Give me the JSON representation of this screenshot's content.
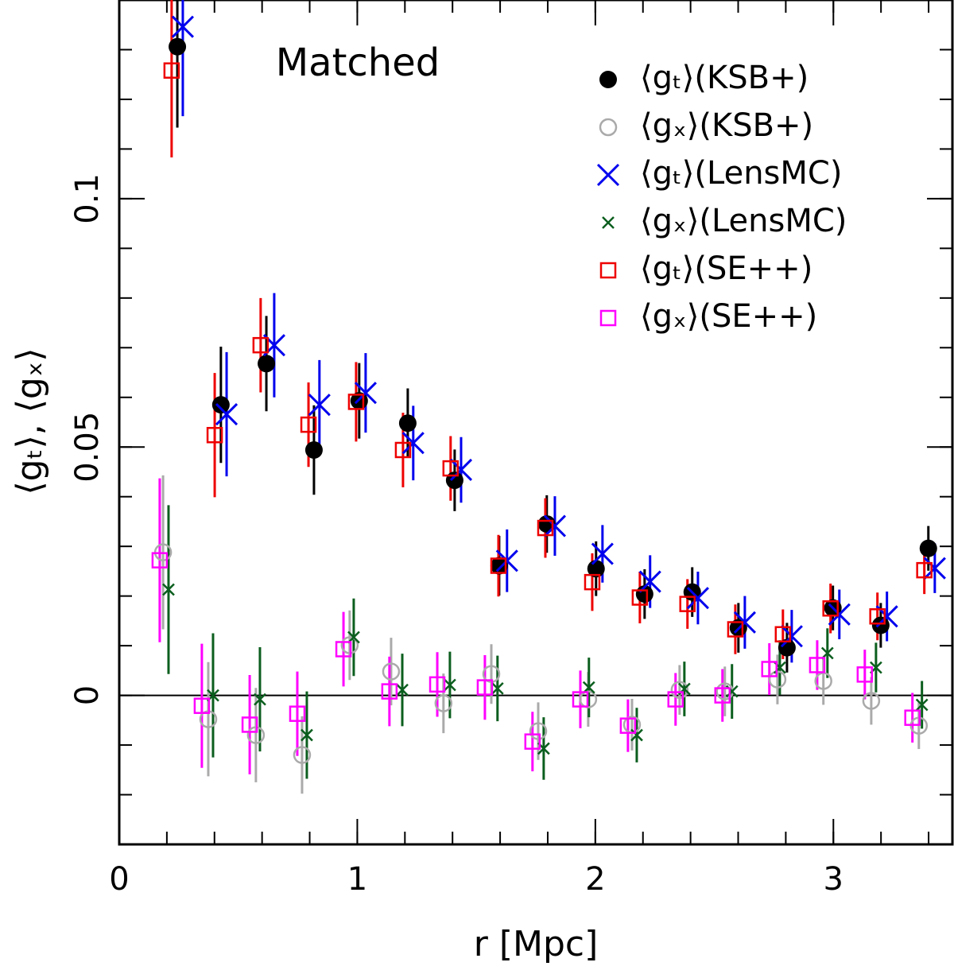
{
  "chart_data": {
    "type": "scatter",
    "annotation": "Matched",
    "x_label": "r [Mpc]",
    "y_label": "⟨gₜ⟩, ⟨gₓ⟩",
    "xlim": [
      0,
      3.5
    ],
    "ylim": [
      -0.03,
      0.14
    ],
    "xticks": [
      0,
      1,
      2,
      3
    ],
    "yticks": [
      0,
      0.05,
      0.1
    ],
    "legend": "upper right",
    "series": [
      {
        "name": "⟨gₜ⟩(KSB+)",
        "color": "#000000",
        "marker": "filled-circle",
        "x": [
          0.244,
          0.427,
          0.618,
          0.818,
          1.008,
          1.212,
          1.409,
          1.596,
          1.796,
          2.003,
          2.207,
          2.407,
          2.601,
          2.805,
          2.998,
          3.199,
          3.399
        ],
        "values": [
          0.1306,
          0.0585,
          0.0668,
          0.0494,
          0.0593,
          0.0548,
          0.0433,
          0.0261,
          0.0345,
          0.0255,
          0.0204,
          0.0208,
          0.0136,
          0.0096,
          0.0176,
          0.0141,
          0.0296
        ],
        "errors": [
          0.0163,
          0.0117,
          0.0096,
          0.009,
          0.0076,
          0.007,
          0.0062,
          0.006,
          0.0058,
          0.0055,
          0.005,
          0.005,
          0.005,
          0.005,
          0.0045,
          0.0045,
          0.0045
        ]
      },
      {
        "name": "⟨gₓ⟩(KSB+)",
        "color": "#aaaaaa",
        "marker": "open-circle",
        "x": [
          0.184,
          0.374,
          0.574,
          0.768,
          0.968,
          1.142,
          1.362,
          1.563,
          1.76,
          1.97,
          2.154,
          2.354,
          2.544,
          2.765,
          2.958,
          3.159,
          3.359
        ],
        "values": [
          0.0288,
          -0.0048,
          -0.008,
          -0.012,
          0.0101,
          0.0048,
          -0.0016,
          0.0043,
          -0.0072,
          -0.0008,
          -0.0059,
          0.0011,
          0.0008,
          0.0032,
          0.0029,
          -0.0011,
          -0.0061
        ],
        "errors": [
          0.0155,
          0.0115,
          0.0095,
          0.0078,
          0.007,
          0.0068,
          0.006,
          0.006,
          0.0058,
          0.0055,
          0.0052,
          0.005,
          0.005,
          0.005,
          0.0048,
          0.0048,
          0.0047
        ]
      },
      {
        "name": "⟨gₜ⟩(LensMC)",
        "color": "#0000ee",
        "marker": "big-cross",
        "x": [
          0.267,
          0.451,
          0.651,
          0.841,
          1.035,
          1.235,
          1.436,
          1.629,
          1.83,
          2.03,
          2.23,
          2.431,
          2.628,
          2.825,
          3.025,
          3.225,
          3.426
        ],
        "values": [
          0.1346,
          0.0566,
          0.0705,
          0.0585,
          0.0609,
          0.0508,
          0.0454,
          0.0271,
          0.0341,
          0.0285,
          0.0229,
          0.0196,
          0.0147,
          0.0119,
          0.0163,
          0.0159,
          0.0256
        ],
        "errors": [
          0.018,
          0.0125,
          0.0105,
          0.009,
          0.008,
          0.0075,
          0.0066,
          0.0063,
          0.006,
          0.0058,
          0.0053,
          0.0053,
          0.0053,
          0.0053,
          0.005,
          0.005,
          0.005
        ]
      },
      {
        "name": "⟨gₓ⟩(LensMC)",
        "color": "#0b5e1e",
        "marker": "small-cross",
        "x": [
          0.207,
          0.394,
          0.591,
          0.788,
          0.985,
          1.189,
          1.389,
          1.589,
          1.783,
          1.973,
          2.174,
          2.374,
          2.574,
          2.775,
          2.975,
          3.179,
          3.372
        ],
        "values": [
          0.0213,
          0,
          -0.0008,
          -0.008,
          0.0117,
          0.0011,
          0.0021,
          0.0014,
          -0.0107,
          0.0016,
          -0.008,
          0.0013,
          0.0008,
          0.0056,
          0.0085,
          0.0056,
          -0.0019
        ],
        "errors": [
          0.017,
          0.0125,
          0.0105,
          0.0088,
          0.0078,
          0.0073,
          0.0067,
          0.0066,
          0.0063,
          0.006,
          0.0055,
          0.0055,
          0.0055,
          0.0055,
          0.005,
          0.005,
          0.0048
        ]
      },
      {
        "name": "⟨gₜ⟩(SE++)",
        "color": "#ee0000",
        "marker": "open-square",
        "x": [
          0.22,
          0.401,
          0.594,
          0.795,
          0.995,
          1.192,
          1.392,
          1.593,
          1.79,
          1.987,
          2.187,
          2.387,
          2.588,
          2.788,
          2.988,
          3.185,
          3.382
        ],
        "values": [
          0.1258,
          0.0524,
          0.0705,
          0.0545,
          0.0591,
          0.0494,
          0.0457,
          0.0261,
          0.0337,
          0.0228,
          0.0197,
          0.0184,
          0.0133,
          0.0123,
          0.0175,
          0.0159,
          0.0252
        ],
        "errors": [
          0.0175,
          0.0125,
          0.0095,
          0.0085,
          0.008,
          0.0075,
          0.0065,
          0.0062,
          0.006,
          0.0058,
          0.0052,
          0.005,
          0.005,
          0.005,
          0.005,
          0.0048,
          0.0048
        ]
      },
      {
        "name": "⟨gₓ⟩(SE++)",
        "color": "#ff00ff",
        "marker": "open-square",
        "x": [
          0.17,
          0.347,
          0.548,
          0.748,
          0.942,
          1.135,
          1.336,
          1.536,
          1.736,
          1.937,
          2.137,
          2.337,
          2.534,
          2.731,
          2.932,
          3.132,
          3.332
        ],
        "values": [
          0.0272,
          -0.0021,
          -0.0059,
          -0.0037,
          0.0093,
          0.0008,
          0.0022,
          0.0016,
          -0.0093,
          -0.0008,
          -0.0061,
          -0.0008,
          0,
          0.0053,
          0.0061,
          0.0042,
          -0.0045
        ],
        "errors": [
          0.0165,
          0.0125,
          0.01,
          0.0085,
          0.0075,
          0.007,
          0.0065,
          0.0065,
          0.006,
          0.0058,
          0.0053,
          0.0053,
          0.0053,
          0.0052,
          0.005,
          0.005,
          0.005
        ]
      }
    ]
  }
}
